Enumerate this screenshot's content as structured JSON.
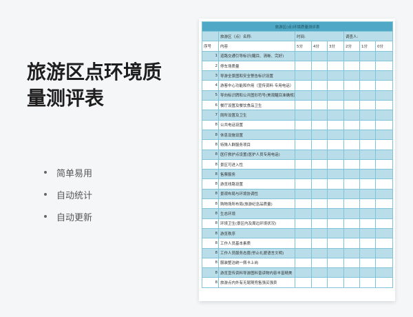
{
  "title": "旅游区点环境质量测评表",
  "features": [
    "简单易用",
    "自动统计",
    "自动更新"
  ],
  "sheet": {
    "header": "旅游区(点)环境质量测评表",
    "name_label": "旅游区（点）名称:",
    "time_label": "时间:",
    "surveyor_label": "调查人:",
    "columns": [
      "序号",
      "内容",
      "5分",
      "4分",
      "3分",
      "2分",
      "1分",
      "0分"
    ],
    "rows": [
      {
        "no": "1",
        "text": "道路交通引导标识(醒目、清晰、完好)"
      },
      {
        "no": "2",
        "text": "停车场质量"
      },
      {
        "no": "3",
        "text": "导游全景图和安全警告标识设置"
      },
      {
        "no": "4",
        "text": "游客中心功能和作用（宣传资料·专用电话）"
      },
      {
        "no": "5",
        "text": "导向标识牌和公共图形符号(美观醒目准确规范)"
      },
      {
        "no": "6",
        "text": "餐厅设置及餐饮食品卫生"
      },
      {
        "no": "7",
        "text": "厕所设置及卫生"
      },
      {
        "no": "8",
        "text": "公共电话设置"
      },
      {
        "no": "8",
        "text": "休息设施设置"
      },
      {
        "no": "8",
        "text": "特殊人群服务项目"
      },
      {
        "no": "8",
        "text": "医疗救护点设置(医护人员专用电话)"
      },
      {
        "no": "8",
        "text": "景区可进入性"
      },
      {
        "no": "8",
        "text": "售票服务"
      },
      {
        "no": "8",
        "text": "游览线路设置"
      },
      {
        "no": "8",
        "text": "景观布局与环境协调性"
      },
      {
        "no": "8",
        "text": "购物场所布局(旅游纪念品质量)"
      },
      {
        "no": "8",
        "text": "生态环境"
      },
      {
        "no": "8",
        "text": "环境卫生(景区内及周边环境状况)"
      },
      {
        "no": "8",
        "text": "游览秩序"
      },
      {
        "no": "8",
        "text": "工作人员基本素质"
      },
      {
        "no": "8",
        "text": "工作人员服务态度(举止礼貌语言文明)"
      },
      {
        "no": "8",
        "text": "服装整洁统一佩卡上岗"
      },
      {
        "no": "8",
        "text": "游览宣传资料导游图料普读物内容丰富精美"
      },
      {
        "no": "8",
        "text": "旅游点内外有无尾随兜售强买强卖"
      }
    ]
  },
  "colors": {
    "header": "#4fa9c6",
    "stripe": "#b9dde9",
    "border": "#7fc3d8"
  }
}
